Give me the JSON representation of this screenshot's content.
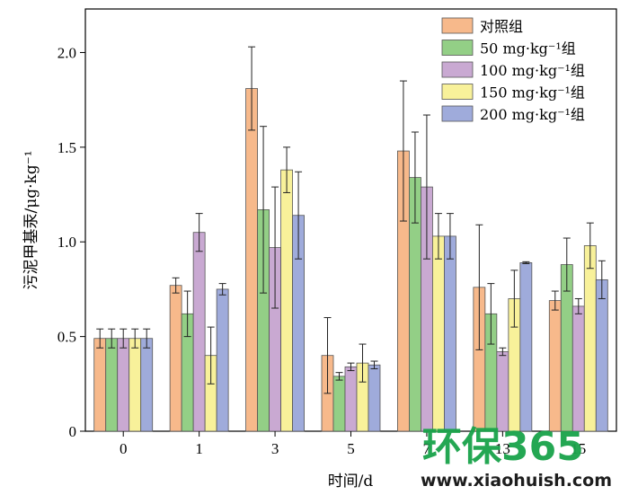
{
  "chart_data": {
    "type": "bar",
    "xlabel": "时间/d",
    "ylabel": "污泥甲基汞/μg·kg⁻¹",
    "ylim": [
      0,
      2.23
    ],
    "yticks": [
      "0",
      "0.5",
      "1.0",
      "1.5",
      "2.0"
    ],
    "ytick_values": [
      0,
      0.5,
      1.0,
      1.5,
      2.0
    ],
    "categories": [
      "0",
      "1",
      "3",
      "5",
      "7",
      "13",
      "15"
    ],
    "legend_position": "top-right",
    "grid": false,
    "series": [
      {
        "name": "对照组",
        "color": "#f7b98b",
        "values": [
          0.49,
          0.77,
          1.81,
          0.4,
          1.48,
          0.76,
          0.69
        ],
        "errors": [
          0.05,
          0.04,
          0.22,
          0.2,
          0.37,
          0.33,
          0.05
        ]
      },
      {
        "name": "50 mg·kg⁻¹组",
        "color": "#93cf86",
        "values": [
          0.49,
          0.62,
          1.17,
          0.29,
          1.34,
          0.62,
          0.88
        ],
        "errors": [
          0.05,
          0.12,
          0.44,
          0.02,
          0.24,
          0.16,
          0.14
        ]
      },
      {
        "name": "100 mg·kg⁻¹组",
        "color": "#c9a9d2",
        "values": [
          0.49,
          1.05,
          0.97,
          0.34,
          1.29,
          0.42,
          0.66
        ],
        "errors": [
          0.05,
          0.1,
          0.32,
          0.02,
          0.38,
          0.02,
          0.04
        ]
      },
      {
        "name": "150 mg·kg⁻¹组",
        "color": "#f8f19a",
        "values": [
          0.49,
          0.4,
          1.38,
          0.36,
          1.03,
          0.7,
          0.98
        ],
        "errors": [
          0.05,
          0.15,
          0.12,
          0.1,
          0.12,
          0.15,
          0.12
        ]
      },
      {
        "name": "200 mg·kg⁻¹组",
        "color": "#9fabdb",
        "values": [
          0.49,
          0.75,
          1.14,
          0.35,
          1.03,
          0.89,
          0.8
        ],
        "errors": [
          0.05,
          0.03,
          0.23,
          0.02,
          0.12,
          0.005,
          0.1
        ]
      }
    ]
  },
  "watermark": {
    "main": "环保365",
    "sub": "www.xiaohuish.com"
  }
}
